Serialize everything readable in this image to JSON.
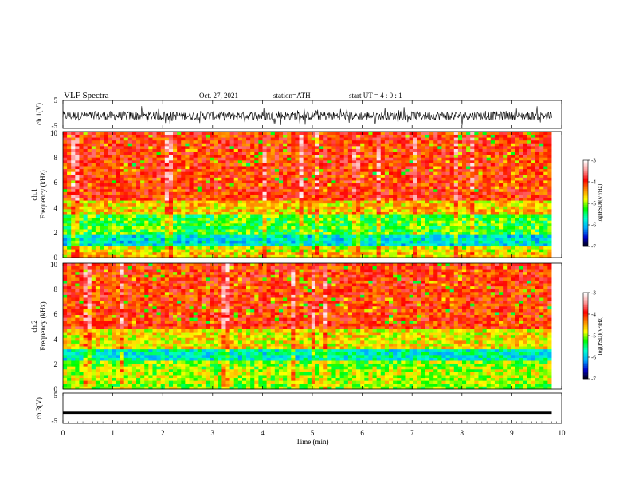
{
  "header": {
    "title": "VLF  Spectra",
    "date": "Oct. 27, 2021",
    "station": "station=ATH",
    "start": "start  UT  =   4 : 0  : 1"
  },
  "chart_data": [
    {
      "type": "line",
      "panel": "ch1-waveform",
      "ylabel": "ch.1(V)",
      "yticks": [
        "5",
        "-5"
      ],
      "ylim": [
        -5,
        5
      ],
      "xlim": [
        0,
        10
      ],
      "data_end_min": 9.8,
      "color": "#000000",
      "description_of_signal": "noisy broadband waveform centred near -0.5 V"
    },
    {
      "type": "heatmap",
      "panel": "ch1-spectrogram",
      "ylabel": "Frequency  (kHz)",
      "channel_label": "ch.1",
      "yticks": [
        "0",
        "2",
        "4",
        "6",
        "8",
        "10"
      ],
      "ylim": [
        0,
        10
      ],
      "xlim": [
        0,
        10
      ],
      "data_end_min": 9.8,
      "bands_khz": [
        {
          "from": 0,
          "to": 0.4,
          "level": -4.6
        },
        {
          "from": 0.4,
          "to": 1.0,
          "level": -4.8
        },
        {
          "from": 1.0,
          "to": 1.8,
          "level": -5.8
        },
        {
          "from": 1.8,
          "to": 2.2,
          "level": -5.2
        },
        {
          "from": 2.2,
          "to": 3.5,
          "level": -5.2
        },
        {
          "from": 3.5,
          "to": 4.5,
          "level": -4.6
        },
        {
          "from": 4.5,
          "to": 10.0,
          "level": -4.0
        }
      ],
      "colorbar": {
        "label": "log(PSD)(V²/Hz)",
        "ticks": [
          "-3",
          "-4",
          "-5",
          "-6",
          "-7"
        ],
        "range": [
          -7,
          -3
        ],
        "stops": [
          "#000000",
          "#0000cc",
          "#00aaff",
          "#00ffcc",
          "#00ff00",
          "#ffff00",
          "#ff8800",
          "#ff0000",
          "#ff9999",
          "#ffffff"
        ]
      }
    },
    {
      "type": "heatmap",
      "panel": "ch2-spectrogram",
      "ylabel": "Frequency  (kHz)",
      "channel_label": "ch.2",
      "yticks": [
        "0",
        "2",
        "4",
        "6",
        "8",
        "10"
      ],
      "ylim": [
        0,
        10
      ],
      "xlim": [
        0,
        10
      ],
      "data_end_min": 9.8,
      "bands_khz": [
        {
          "from": 0,
          "to": 0.5,
          "level": -5.0
        },
        {
          "from": 0.5,
          "to": 1.6,
          "level": -4.9
        },
        {
          "from": 1.6,
          "to": 2.2,
          "level": -5.0
        },
        {
          "from": 2.2,
          "to": 3.2,
          "level": -5.7
        },
        {
          "from": 3.2,
          "to": 4.8,
          "level": -4.7
        },
        {
          "from": 4.8,
          "to": 10.0,
          "level": -4.0
        }
      ],
      "colorbar": {
        "label": "log(PSD)(V²/Hz)",
        "ticks": [
          "-3",
          "-4",
          "-5",
          "-6",
          "-7"
        ],
        "range": [
          -7,
          -3
        ],
        "stops": [
          "#000000",
          "#0000cc",
          "#00aaff",
          "#00ffcc",
          "#00ff00",
          "#ffff00",
          "#ff8800",
          "#ff0000",
          "#ff9999",
          "#ffffff"
        ]
      }
    },
    {
      "type": "line",
      "panel": "ch3-waveform",
      "ylabel": "ch.3(V)",
      "yticks": [
        "5",
        "-5"
      ],
      "ylim": [
        -5,
        5
      ],
      "xlim": [
        0,
        10
      ],
      "data_end_min": 9.8,
      "constant_level": -1.5,
      "color": "#000000"
    }
  ],
  "xaxis": {
    "label": "Time  (min)",
    "ticks": [
      "0",
      "1",
      "2",
      "3",
      "4",
      "5",
      "6",
      "7",
      "8",
      "9",
      "10"
    ]
  }
}
